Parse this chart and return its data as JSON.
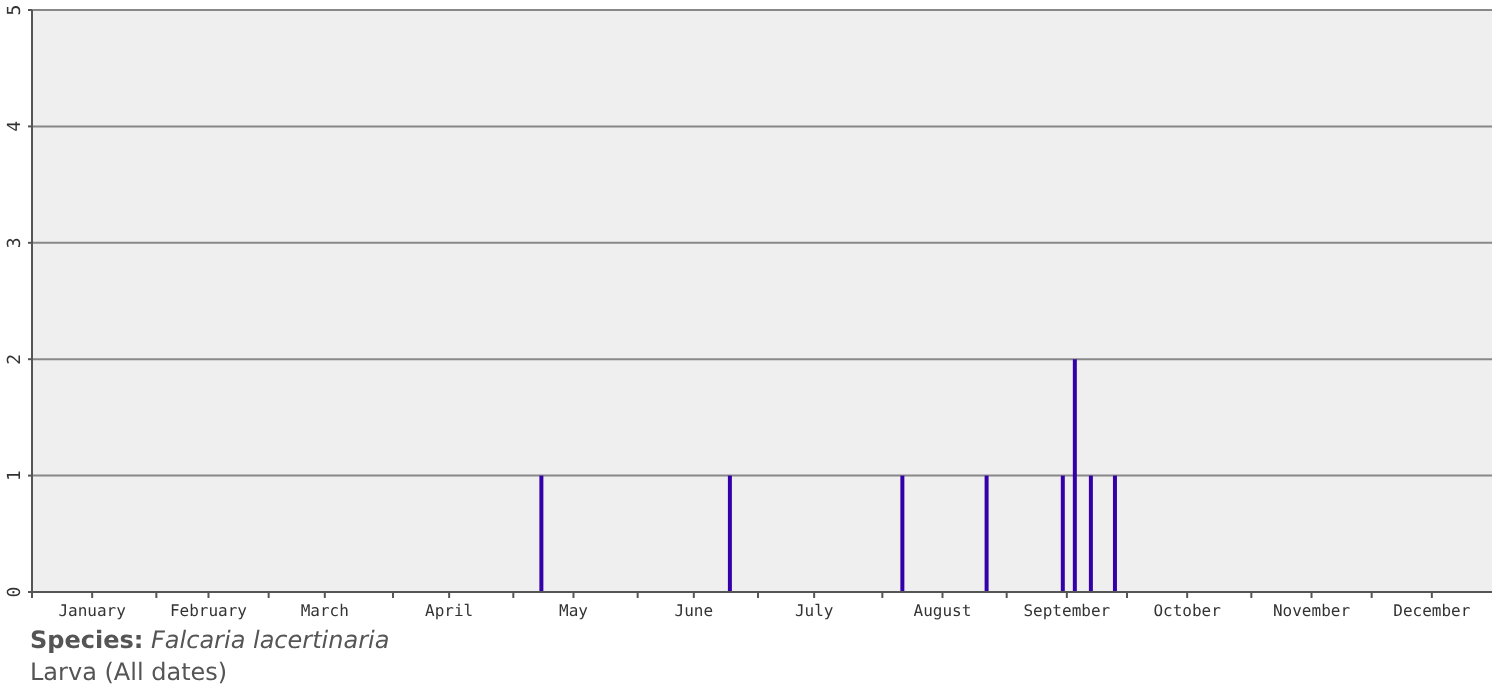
{
  "chart_data": {
    "type": "bar",
    "x": [
      "--05-08",
      "--06-24",
      "--08-06",
      "--08-27",
      "--09-15",
      "--09-18",
      "--09-22",
      "--09-28"
    ],
    "values": [
      1,
      1,
      1,
      1,
      1,
      2,
      1,
      1
    ],
    "color": "#3300aa",
    "xlim": [
      "--01-01",
      "--12-31"
    ],
    "xticks": [
      {
        "value": "--01-01",
        "label": null
      },
      {
        "value": "--01-16",
        "label": "January"
      },
      {
        "value": "--02-01",
        "label": null
      },
      {
        "value": "--02-14",
        "label": "February"
      },
      {
        "value": "--03-01",
        "label": null
      },
      {
        "value": "--03-15",
        "label": "March"
      },
      {
        "value": "--04-01",
        "label": null
      },
      {
        "value": "--04-15",
        "label": "April"
      },
      {
        "value": "--05-01",
        "label": null
      },
      {
        "value": "--05-16",
        "label": "May"
      },
      {
        "value": "--06-01",
        "label": null
      },
      {
        "value": "--06-15",
        "label": "June"
      },
      {
        "value": "--07-01",
        "label": null
      },
      {
        "value": "--07-15",
        "label": "July"
      },
      {
        "value": "--08-01",
        "label": null
      },
      {
        "value": "--08-16",
        "label": "August"
      },
      {
        "value": "--09-01",
        "label": null
      },
      {
        "value": "--09-16",
        "label": "September"
      },
      {
        "value": "--10-01",
        "label": null
      },
      {
        "value": "--10-16",
        "label": "October"
      },
      {
        "value": "--11-01",
        "label": null
      },
      {
        "value": "--11-16",
        "label": "November"
      },
      {
        "value": "--12-01",
        "label": null
      },
      {
        "value": "--12-16",
        "label": "December"
      }
    ],
    "ylim": [
      0,
      5
    ],
    "yticks": [
      0,
      1,
      2,
      3,
      4,
      5
    ],
    "grid": "y",
    "annotations": [
      "Species: Falcaria lacertinaria",
      "Larva (All dates)"
    ]
  }
}
